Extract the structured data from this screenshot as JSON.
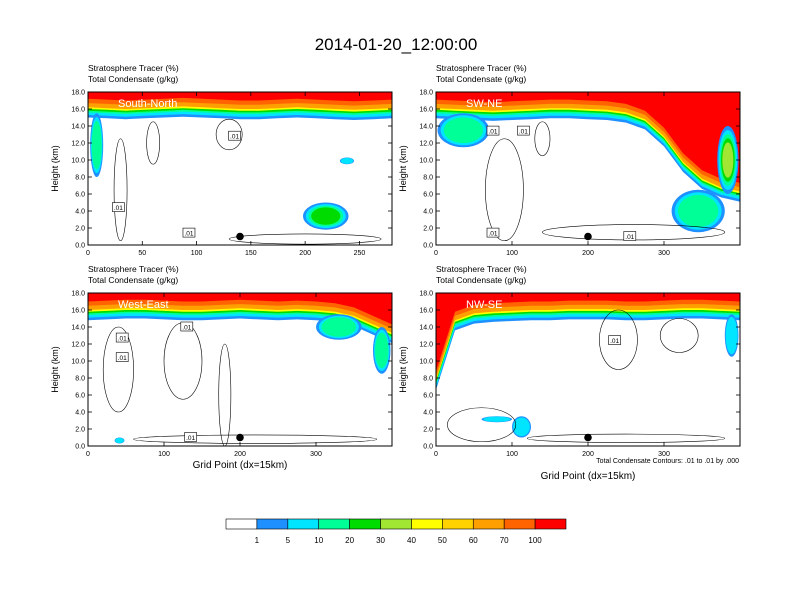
{
  "figure": {
    "title": "2014-01-20_12:00:00",
    "footnote": "Total Condensate Contours: .01 to .01 by .000",
    "colorbar": {
      "labels": [
        "1",
        "5",
        "10",
        "20",
        "30",
        "40",
        "50",
        "60",
        "70",
        "100"
      ],
      "colors": [
        "#ffffff",
        "#1e90ff",
        "#00e5ff",
        "#00ff96",
        "#00dc00",
        "#a0e632",
        "#ffff00",
        "#ffd200",
        "#ffa000",
        "#ff6400",
        "#ff0000"
      ]
    }
  },
  "chart_data": [
    {
      "type": "heatmap",
      "panel_label": "South-North",
      "title_lines": [
        "Stratosphere Tracer   (%)",
        "Total Condensate   (g/kg)"
      ],
      "ylabel": "Height (km)",
      "xlabel": "",
      "x_ticks": [
        "0",
        "50",
        "100",
        "150",
        "200",
        "250"
      ],
      "y_ticks": [
        "0.0",
        "2.0",
        "4.0",
        "6.0",
        "8.0",
        "10.0",
        "12.0",
        "14.0",
        "16.0",
        "18.0"
      ],
      "xlim": [
        0,
        280
      ],
      "ylim": [
        0,
        18
      ],
      "marker": {
        "x": 140,
        "y": 1.0
      },
      "contour_labels": [
        {
          "text": ".01",
          "x": 135,
          "y": 12.8
        },
        {
          "text": ".01",
          "x": 28,
          "y": 4.4
        },
        {
          "text": ".01",
          "x": 93,
          "y": 1.4
        }
      ],
      "tropopause_km": [
        16.4,
        16.3,
        16.2,
        16.3,
        16.4,
        16.5,
        16.4,
        16.3,
        16.2,
        16.2,
        16.3,
        16.4,
        16.3,
        16.2,
        16.1,
        16.2,
        16.3
      ],
      "fill_features": [
        {
          "x0": 2,
          "x1": 14,
          "y0": 8.0,
          "y1": 15.5,
          "level": 2
        },
        {
          "x0": 198,
          "x1": 240,
          "y0": 1.8,
          "y1": 5.0,
          "level": 3
        },
        {
          "x0": 232,
          "x1": 245,
          "y0": 9.5,
          "y1": 10.3,
          "level": 1
        }
      ],
      "contours": [
        {
          "x": 30,
          "y": 6.5,
          "rx": 6,
          "ry": 6.0
        },
        {
          "x": 130,
          "y": 13.0,
          "rx": 12,
          "ry": 1.8
        },
        {
          "x": 60,
          "y": 12.0,
          "rx": 6,
          "ry": 2.5
        },
        {
          "x": 200,
          "y": 0.7,
          "rx": 70,
          "ry": 0.6
        }
      ]
    },
    {
      "type": "heatmap",
      "panel_label": "SW-NE",
      "title_lines": [
        "Stratosphere Tracer   (%)",
        "Total Condensate   (g/kg)"
      ],
      "ylabel": "Height (km)",
      "xlabel": "",
      "x_ticks": [
        "0",
        "100",
        "200",
        "300"
      ],
      "y_ticks": [
        "0.0",
        "2.0",
        "4.0",
        "6.0",
        "8.0",
        "10.0",
        "12.0",
        "14.0",
        "16.0",
        "18.0"
      ],
      "xlim": [
        0,
        400
      ],
      "ylim": [
        0,
        18
      ],
      "marker": {
        "x": 200,
        "y": 1.0
      },
      "contour_labels": [
        {
          "text": ".01",
          "x": 75,
          "y": 13.4
        },
        {
          "text": ".01",
          "x": 115,
          "y": 13.4
        },
        {
          "text": ".01",
          "x": 75,
          "y": 1.4
        },
        {
          "text": ".01",
          "x": 255,
          "y": 1.0
        }
      ],
      "tropopause_km": [
        16.3,
        16.2,
        16.1,
        16.0,
        16.1,
        16.2,
        16.3,
        16.3,
        16.2,
        16.1,
        15.8,
        15.0,
        13.0,
        10.0,
        8.0,
        7.0,
        6.5
      ],
      "fill_features": [
        {
          "x0": 2,
          "x1": 70,
          "y0": 11.5,
          "y1": 15.5,
          "level": 2
        },
        {
          "x0": 310,
          "x1": 380,
          "y0": 1.5,
          "y1": 6.5,
          "level": 2
        },
        {
          "x0": 370,
          "x1": 398,
          "y0": 6.0,
          "y1": 14.0,
          "level": 4
        }
      ],
      "contours": [
        {
          "x": 90,
          "y": 6.5,
          "rx": 25,
          "ry": 6.0
        },
        {
          "x": 140,
          "y": 12.5,
          "rx": 10,
          "ry": 2.0
        },
        {
          "x": 260,
          "y": 1.5,
          "rx": 120,
          "ry": 0.9
        }
      ]
    },
    {
      "type": "heatmap",
      "panel_label": "West-East",
      "title_lines": [
        "Stratosphere Tracer   (%)",
        "Total Condensate   (g/kg)"
      ],
      "ylabel": "Height (km)",
      "xlabel": "Grid Point (dx=15km)",
      "x_ticks": [
        "0",
        "100",
        "200",
        "300"
      ],
      "y_ticks": [
        "0.0",
        "2.0",
        "4.0",
        "6.0",
        "8.0",
        "10.0",
        "12.0",
        "14.0",
        "16.0",
        "18.0"
      ],
      "xlim": [
        0,
        400
      ],
      "ylim": [
        0,
        18
      ],
      "marker": {
        "x": 200,
        "y": 1.0
      },
      "contour_labels": [
        {
          "text": ".01",
          "x": 45,
          "y": 12.7
        },
        {
          "text": ".01",
          "x": 45,
          "y": 10.4
        },
        {
          "text": ".01",
          "x": 130,
          "y": 14.0
        },
        {
          "text": ".01",
          "x": 135,
          "y": 1.0
        }
      ],
      "tropopause_km": [
        16.2,
        16.3,
        16.4,
        16.4,
        16.3,
        16.2,
        16.2,
        16.3,
        16.4,
        16.3,
        16.2,
        16.3,
        16.2,
        16.0,
        15.5,
        14.5,
        13.5
      ],
      "fill_features": [
        {
          "x0": 300,
          "x1": 360,
          "y0": 12.5,
          "y1": 15.5,
          "level": 2
        },
        {
          "x0": 375,
          "x1": 398,
          "y0": 8.5,
          "y1": 14.0,
          "level": 2
        },
        {
          "x0": 35,
          "x1": 48,
          "y0": 0.3,
          "y1": 1.0,
          "level": 1
        }
      ],
      "contours": [
        {
          "x": 40,
          "y": 9.0,
          "rx": 20,
          "ry": 5.0
        },
        {
          "x": 125,
          "y": 10.0,
          "rx": 25,
          "ry": 4.5
        },
        {
          "x": 180,
          "y": 6.0,
          "rx": 8,
          "ry": 6.0
        },
        {
          "x": 220,
          "y": 0.8,
          "rx": 160,
          "ry": 0.5
        }
      ]
    },
    {
      "type": "heatmap",
      "panel_label": "NW-SE",
      "title_lines": [
        "Stratosphere Tracer   (%)",
        "Total Condensate   (g/kg)"
      ],
      "ylabel": "Height (km)",
      "xlabel": "Grid Point (dx=15km)",
      "x_ticks": [
        "0",
        "100",
        "200",
        "300"
      ],
      "y_ticks": [
        "0.0",
        "2.0",
        "4.0",
        "6.0",
        "8.0",
        "10.0",
        "12.0",
        "14.0",
        "16.0",
        "18.0"
      ],
      "xlim": [
        0,
        400
      ],
      "ylim": [
        0,
        18
      ],
      "marker": {
        "x": 200,
        "y": 1.0
      },
      "contour_labels": [
        {
          "text": ".01",
          "x": 235,
          "y": 12.4
        }
      ],
      "tropopause_km": [
        8.0,
        15.0,
        15.8,
        16.0,
        16.1,
        16.2,
        16.2,
        16.3,
        16.3,
        16.3,
        16.2,
        16.2,
        16.3,
        16.4,
        16.4,
        16.3,
        16.2
      ],
      "fill_features": [
        {
          "x0": 100,
          "x1": 125,
          "y0": 1.0,
          "y1": 3.5,
          "level": 1
        },
        {
          "x0": 60,
          "x1": 100,
          "y0": 2.8,
          "y1": 3.5,
          "level": 1
        },
        {
          "x0": 380,
          "x1": 398,
          "y0": 10.5,
          "y1": 15.5,
          "level": 1
        }
      ],
      "contours": [
        {
          "x": 60,
          "y": 2.5,
          "rx": 45,
          "ry": 2.0
        },
        {
          "x": 240,
          "y": 12.5,
          "rx": 25,
          "ry": 3.5
        },
        {
          "x": 320,
          "y": 13.0,
          "rx": 25,
          "ry": 2.0
        },
        {
          "x": 250,
          "y": 0.9,
          "rx": 130,
          "ry": 0.5
        }
      ]
    }
  ]
}
